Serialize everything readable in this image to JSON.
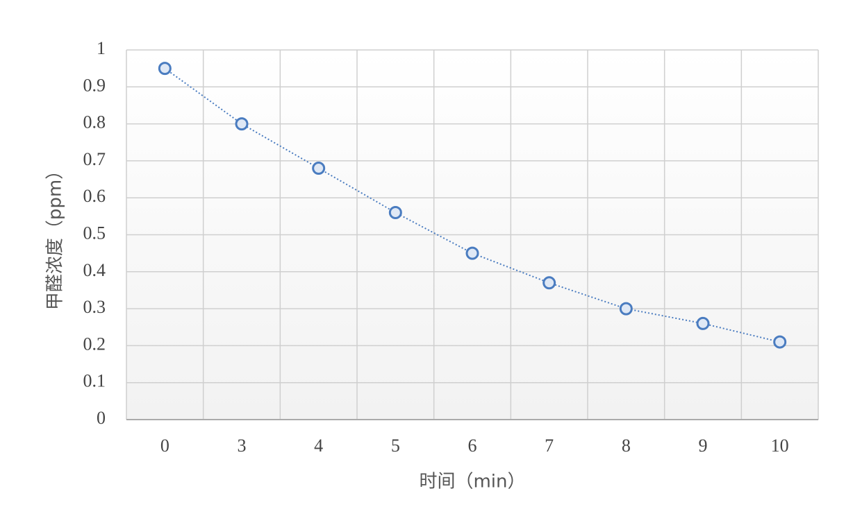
{
  "chart_data": {
    "type": "line",
    "x_label": "时间（min）",
    "y_label": "甲醛浓度（ppm）",
    "categories": [
      "0",
      "3",
      "4",
      "5",
      "6",
      "7",
      "8",
      "9",
      "10"
    ],
    "values": [
      0.95,
      0.8,
      0.68,
      0.56,
      0.45,
      0.37,
      0.3,
      0.26,
      0.21
    ],
    "color": "#4a7cc0",
    "ylim": [
      0,
      1
    ],
    "yticks": [
      0,
      0.1,
      0.2,
      0.3,
      0.4,
      0.5,
      0.6,
      0.7,
      0.8,
      0.9,
      1
    ],
    "grid": true
  }
}
